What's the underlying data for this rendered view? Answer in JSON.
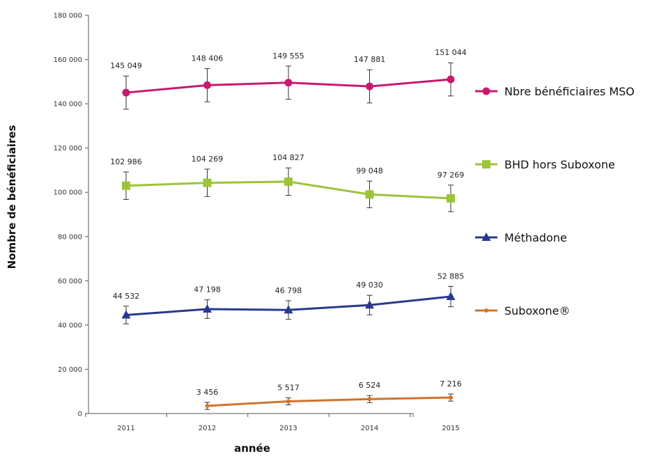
{
  "chart_data": {
    "type": "line",
    "title": "",
    "xlabel": "année",
    "ylabel": "Nombre de bénéficiaires",
    "categories": [
      "2011",
      "2012",
      "2013",
      "2014",
      "2015"
    ],
    "ylim": [
      0,
      180000
    ],
    "yticks": [
      0,
      20000,
      40000,
      60000,
      80000,
      100000,
      120000,
      140000,
      160000,
      180000
    ],
    "ytick_labels": [
      "0",
      "20 000",
      "40 000",
      "60 000",
      "80 000",
      "100 000",
      "120 000",
      "140 000",
      "160 000",
      "180 000"
    ],
    "grid": false,
    "legend_position": "right",
    "series": [
      {
        "name": "Nbre bénéficiaires MSO",
        "legend": "Nbre bénéficiaires MSO",
        "color": "#c8196e",
        "marker": "circle",
        "values": [
          145049,
          148406,
          149555,
          147881,
          151044
        ],
        "labels": [
          "145 049",
          "148 406",
          "149 555",
          "147 881",
          "151 044"
        ],
        "error": [
          7500,
          7500,
          7500,
          7500,
          7500
        ]
      },
      {
        "name": "BHD hors Suboxone",
        "legend": "BHD  hors Suboxone",
        "color": "#9cc43a",
        "marker": "square",
        "values": [
          102986,
          104269,
          104827,
          99048,
          97269
        ],
        "labels": [
          "102 986",
          "104 269",
          "104 827",
          "99 048",
          "97 269"
        ],
        "error": [
          6200,
          6200,
          6200,
          6000,
          6000
        ]
      },
      {
        "name": "Méthadone",
        "legend": "Méthadone",
        "color": "#27398c",
        "marker": "triangle",
        "values": [
          44532,
          47198,
          46798,
          49030,
          52885
        ],
        "labels": [
          "44 532",
          "47 198",
          "46 798",
          "49 030",
          "52 885"
        ],
        "error": [
          4000,
          4200,
          4200,
          4400,
          4600
        ]
      },
      {
        "name": "Suboxone®",
        "legend": "Suboxone®",
        "color": "#d2722a",
        "marker": "dot",
        "values": [
          null,
          3456,
          5517,
          6524,
          7216
        ],
        "labels": [
          "",
          "3 456",
          "5 517",
          "6 524",
          "7 216"
        ],
        "error": [
          0,
          1600,
          1600,
          1600,
          1600
        ]
      }
    ]
  }
}
